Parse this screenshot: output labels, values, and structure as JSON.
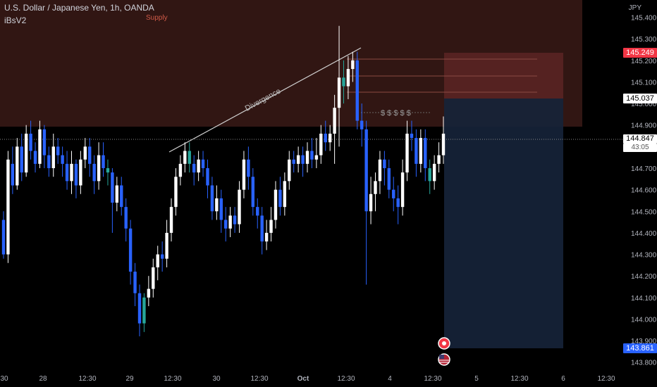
{
  "header": {
    "symbol_line": "U.S. Dollar / Japanese Yen, 1h, OANDA",
    "indicator": "iBsV2",
    "supply_label": "Supply"
  },
  "annotations": {
    "divergence": "Divergence",
    "dollar_marks": "$ $ $ $ $"
  },
  "price_axis": {
    "currency": "JPY",
    "ticks": [
      "145.400",
      "145.300",
      "145.200",
      "145.100",
      "145.000",
      "144.900",
      "144.800",
      "144.700",
      "144.600",
      "144.500",
      "144.400",
      "144.300",
      "144.200",
      "144.100",
      "144.000",
      "143.900",
      "143.800"
    ],
    "tags": {
      "target_high": "145.249",
      "stop": "145.037",
      "last_price": "144.847",
      "countdown": "43:05",
      "target_low": "143.861"
    }
  },
  "time_axis": {
    "labels": [
      "30",
      "28",
      "12:30",
      "29",
      "12:30",
      "30",
      "12:30",
      "Oct",
      "12:30",
      "4",
      "12:30",
      "5",
      "12:30",
      "6",
      "12:30"
    ]
  },
  "colors": {
    "bull": "#ffffff",
    "bear": "#2962ff",
    "signal": "#26a69a",
    "supply_zone": "#3a1a16",
    "risk_box": "#5c2424",
    "reward_box": "#16233a"
  },
  "chart_data": {
    "type": "candlestick",
    "symbol": "U.S. Dollar / Japanese Yen",
    "interval": "1h",
    "ylim": [
      143.76,
      145.48
    ],
    "supply_zone": [
      144.92,
      145.48
    ],
    "position": {
      "entry": 145.037,
      "target_high": 145.249,
      "stop_low": 143.861
    },
    "candles": [
      [
        144.46,
        144.3,
        144.5,
        144.28
      ],
      [
        144.3,
        144.74,
        144.78,
        144.26
      ],
      [
        144.72,
        144.62,
        144.8,
        144.58
      ],
      [
        144.62,
        144.8,
        144.84,
        144.6
      ],
      [
        144.8,
        144.68,
        144.86,
        144.64
      ],
      [
        144.68,
        144.86,
        144.9,
        144.66
      ],
      [
        144.86,
        144.78,
        144.92,
        144.74
      ],
      [
        144.78,
        144.72,
        144.82,
        144.68
      ],
      [
        144.72,
        144.88,
        144.92,
        144.7
      ],
      [
        144.88,
        144.76,
        144.9,
        144.7
      ],
      [
        144.76,
        144.7,
        144.8,
        144.66
      ],
      [
        144.7,
        144.8,
        144.86,
        144.66
      ],
      [
        144.8,
        144.76,
        144.84,
        144.72
      ],
      [
        144.76,
        144.72,
        144.8,
        144.66
      ],
      [
        144.72,
        144.64,
        144.78,
        144.6
      ],
      [
        144.64,
        144.72,
        144.78,
        144.58
      ],
      [
        144.72,
        144.62,
        144.74,
        144.56
      ],
      [
        144.62,
        144.74,
        144.78,
        144.58
      ],
      [
        144.74,
        144.8,
        144.84,
        144.7
      ],
      [
        144.8,
        144.72,
        144.84,
        144.66
      ],
      [
        144.72,
        144.64,
        144.76,
        144.58
      ],
      [
        144.64,
        144.76,
        144.82,
        144.6
      ],
      [
        144.76,
        144.7,
        144.82,
        144.66
      ],
      [
        144.7,
        144.68,
        144.74,
        144.62
      ],
      [
        144.68,
        144.54,
        144.7,
        144.4
      ],
      [
        144.54,
        144.62,
        144.66,
        144.5
      ],
      [
        144.62,
        144.52,
        144.66,
        144.48
      ],
      [
        144.52,
        144.42,
        144.56,
        144.36
      ],
      [
        144.42,
        144.22,
        144.46,
        144.16
      ],
      [
        144.22,
        144.12,
        144.26,
        144.06
      ],
      [
        144.12,
        143.98,
        144.16,
        143.92
      ],
      [
        143.98,
        144.1,
        144.12,
        143.94
      ],
      [
        144.1,
        144.14,
        144.2,
        144.06
      ],
      [
        144.14,
        144.24,
        144.28,
        144.1
      ],
      [
        144.24,
        144.3,
        144.34,
        144.18
      ],
      [
        144.3,
        144.28,
        144.36,
        144.22
      ],
      [
        144.28,
        144.4,
        144.46,
        144.24
      ],
      [
        144.4,
        144.52,
        144.56,
        144.36
      ],
      [
        144.52,
        144.66,
        144.7,
        144.48
      ],
      [
        144.66,
        144.72,
        144.76,
        144.62
      ],
      [
        144.72,
        144.78,
        144.82,
        144.68
      ],
      [
        144.78,
        144.72,
        144.82,
        144.68
      ],
      [
        144.72,
        144.68,
        144.76,
        144.62
      ],
      [
        144.68,
        144.74,
        144.78,
        144.64
      ],
      [
        144.74,
        144.7,
        144.78,
        144.66
      ],
      [
        144.7,
        144.62,
        144.74,
        144.56
      ],
      [
        144.62,
        144.5,
        144.66,
        144.46
      ],
      [
        144.5,
        144.56,
        144.62,
        144.46
      ],
      [
        144.56,
        144.46,
        144.6,
        144.4
      ],
      [
        144.46,
        144.42,
        144.52,
        144.36
      ],
      [
        144.42,
        144.48,
        144.52,
        144.38
      ],
      [
        144.48,
        144.44,
        144.52,
        144.4
      ],
      [
        144.44,
        144.6,
        144.64,
        144.4
      ],
      [
        144.6,
        144.74,
        144.78,
        144.56
      ],
      [
        144.74,
        144.66,
        144.8,
        144.6
      ],
      [
        144.66,
        144.52,
        144.7,
        144.48
      ],
      [
        144.52,
        144.48,
        144.56,
        144.42
      ],
      [
        144.48,
        144.36,
        144.52,
        144.3
      ],
      [
        144.36,
        144.4,
        144.46,
        144.32
      ],
      [
        144.4,
        144.46,
        144.52,
        144.36
      ],
      [
        144.46,
        144.6,
        144.64,
        144.42
      ],
      [
        144.6,
        144.52,
        144.66,
        144.48
      ],
      [
        144.52,
        144.64,
        144.68,
        144.48
      ],
      [
        144.64,
        144.74,
        144.78,
        144.6
      ],
      [
        144.74,
        144.72,
        144.78,
        144.68
      ],
      [
        144.72,
        144.76,
        144.8,
        144.68
      ],
      [
        144.76,
        144.72,
        144.8,
        144.66
      ],
      [
        144.72,
        144.78,
        144.82,
        144.68
      ],
      [
        144.78,
        144.74,
        144.84,
        144.7
      ],
      [
        144.74,
        144.76,
        144.84,
        144.7
      ],
      [
        144.76,
        144.86,
        144.9,
        144.72
      ],
      [
        144.86,
        144.82,
        144.92,
        144.78
      ],
      [
        144.82,
        144.86,
        144.9,
        144.78
      ],
      [
        144.86,
        144.98,
        145.04,
        144.72
      ],
      [
        144.98,
        145.12,
        145.36,
        144.8
      ],
      [
        145.12,
        145.08,
        145.2,
        145.0
      ],
      [
        145.08,
        145.16,
        145.22,
        145.02
      ],
      [
        145.16,
        145.2,
        145.24,
        145.1
      ],
      [
        145.2,
        144.92,
        145.24,
        144.88
      ],
      [
        144.92,
        144.88,
        145.0,
        144.8
      ],
      [
        144.88,
        144.5,
        144.92,
        144.16
      ],
      [
        144.5,
        144.58,
        144.66,
        144.44
      ],
      [
        144.58,
        144.64,
        144.68,
        144.5
      ],
      [
        144.64,
        144.74,
        144.78,
        144.58
      ],
      [
        144.74,
        144.7,
        144.78,
        144.62
      ],
      [
        144.7,
        144.6,
        144.74,
        144.56
      ],
      [
        144.6,
        144.56,
        144.66,
        144.5
      ],
      [
        144.56,
        144.52,
        144.62,
        144.44
      ],
      [
        144.52,
        144.68,
        144.74,
        144.48
      ],
      [
        144.68,
        144.86,
        144.92,
        144.64
      ],
      [
        144.86,
        144.84,
        144.92,
        144.78
      ],
      [
        144.84,
        144.72,
        144.88,
        144.66
      ],
      [
        144.72,
        144.84,
        144.88,
        144.68
      ],
      [
        144.84,
        144.7,
        144.88,
        144.64
      ],
      [
        144.7,
        144.64,
        144.74,
        144.58
      ],
      [
        144.64,
        144.72,
        144.76,
        144.6
      ],
      [
        144.72,
        144.76,
        144.82,
        144.68
      ],
      [
        144.76,
        144.86,
        144.94,
        144.72
      ]
    ]
  }
}
